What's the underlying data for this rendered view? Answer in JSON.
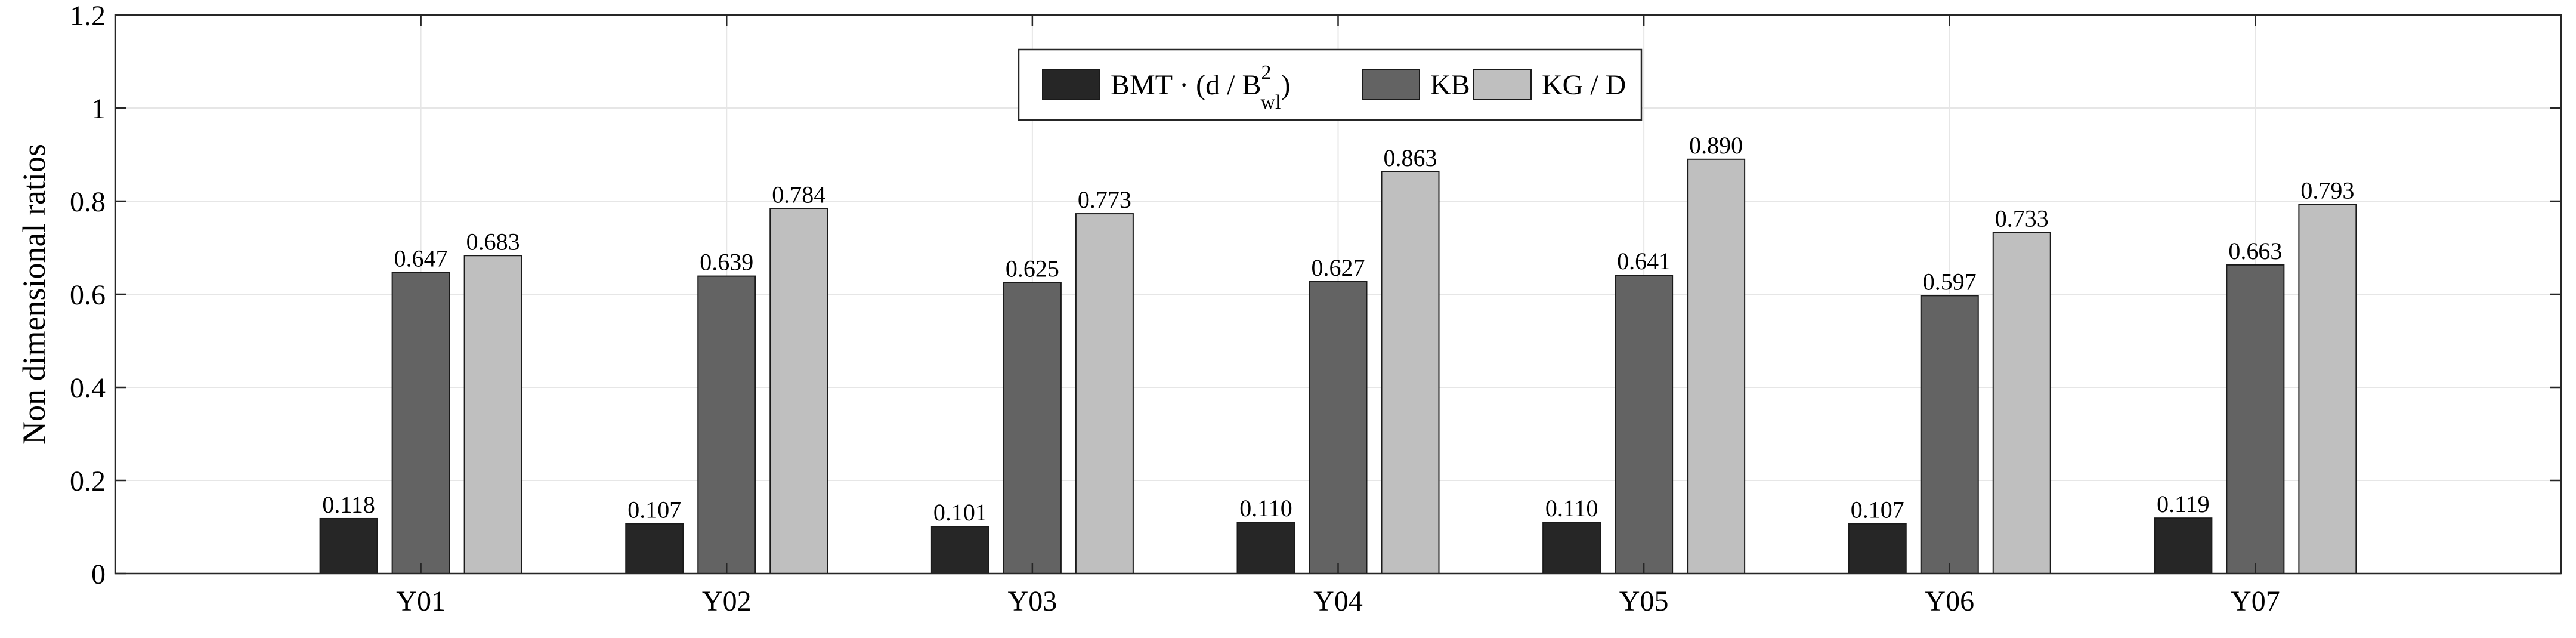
{
  "chart_data": {
    "type": "bar",
    "categories": [
      "Y01",
      "Y02",
      "Y03",
      "Y04",
      "Y05",
      "Y06",
      "Y07"
    ],
    "series": [
      {
        "name": "BMT · (d / B²wl)",
        "color": "#262626",
        "values": [
          0.118,
          0.107,
          0.101,
          0.11,
          0.11,
          0.107,
          0.119
        ],
        "labels": [
          "0.118",
          "0.107",
          "0.101",
          "0.110",
          "0.110",
          "0.107",
          "0.119"
        ]
      },
      {
        "name": "KB / d",
        "color": "#636363",
        "values": [
          0.647,
          0.639,
          0.625,
          0.627,
          0.641,
          0.597,
          0.663
        ],
        "labels": [
          "0.647",
          "0.639",
          "0.625",
          "0.627",
          "0.641",
          "0.597",
          "0.663"
        ]
      },
      {
        "name": "KG / D",
        "color": "#bfbfbf",
        "values": [
          0.683,
          0.784,
          0.773,
          0.863,
          0.89,
          0.733,
          0.793
        ],
        "labels": [
          "0.683",
          "0.784",
          "0.773",
          "0.863",
          "0.890",
          "0.733",
          "0.793"
        ]
      }
    ],
    "legend": {
      "entries": [
        {
          "main": "BMT · (d / B",
          "sup": "2",
          "sub": "wl",
          "close": ")"
        },
        {
          "main": "KB / d"
        },
        {
          "main": "KG / D"
        }
      ],
      "position": "top-center"
    },
    "ylabel": "Non dimensional ratios",
    "xlabel": "",
    "title": "",
    "ylim": [
      0,
      1.2
    ],
    "yticks": [
      0,
      0.2,
      0.4,
      0.6,
      0.8,
      1,
      1.2
    ],
    "ytick_labels": [
      "0",
      "0.2",
      "0.4",
      "0.6",
      "0.8",
      "1",
      "1.2"
    ],
    "grid": true,
    "box": true
  }
}
